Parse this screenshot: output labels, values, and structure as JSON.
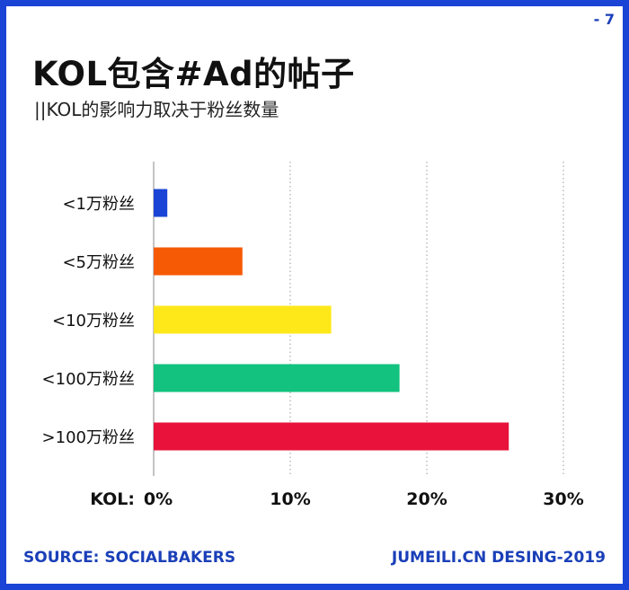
{
  "page_number": "- 7",
  "title": "KOL包含#Ad的帖子",
  "subtitle": "||KOL的影响力取决于粉丝数量",
  "axis_prefix": "KOL:",
  "source": "SOURCE: SOCIALBAKERS",
  "brand": "JUMEILI.CN DESING-2019",
  "chart_data": {
    "type": "bar",
    "orientation": "horizontal",
    "categories": [
      "<1万粉丝",
      "<5万粉丝",
      "<10万粉丝",
      "<100万粉丝",
      ">100万粉丝"
    ],
    "values": [
      1,
      6.5,
      13,
      18,
      26
    ],
    "colors": [
      "#1a44d6",
      "#f75a05",
      "#ffe81a",
      "#12c27e",
      "#e8123a"
    ],
    "xlim": [
      0,
      30
    ],
    "xticks": [
      0,
      10,
      20,
      30
    ],
    "xtick_labels": [
      "0%",
      "10%",
      "20%",
      "30%"
    ],
    "unit": "%",
    "grid": "vertical-dotted",
    "title": "KOL包含#Ad的帖子"
  }
}
